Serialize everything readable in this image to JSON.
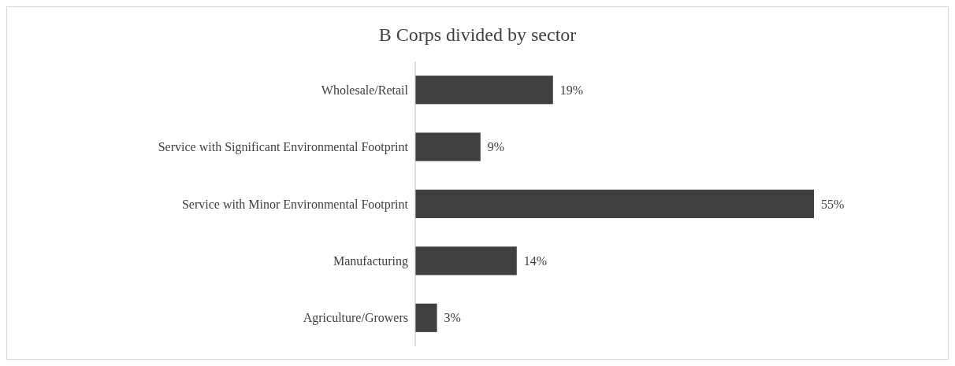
{
  "chart_data": {
    "type": "bar",
    "orientation": "horizontal",
    "title": "B Corps divided by sector",
    "categories": [
      "Wholesale/Retail",
      "Service with Significant Environmental Footprint",
      "Service with Minor Environmental Footprint",
      "Manufacturing",
      "Agriculture/Growers"
    ],
    "values": [
      19,
      9,
      55,
      14,
      3
    ],
    "value_labels": [
      "19%",
      "9%",
      "55%",
      "14%",
      "3%"
    ],
    "color": "#404040"
  }
}
